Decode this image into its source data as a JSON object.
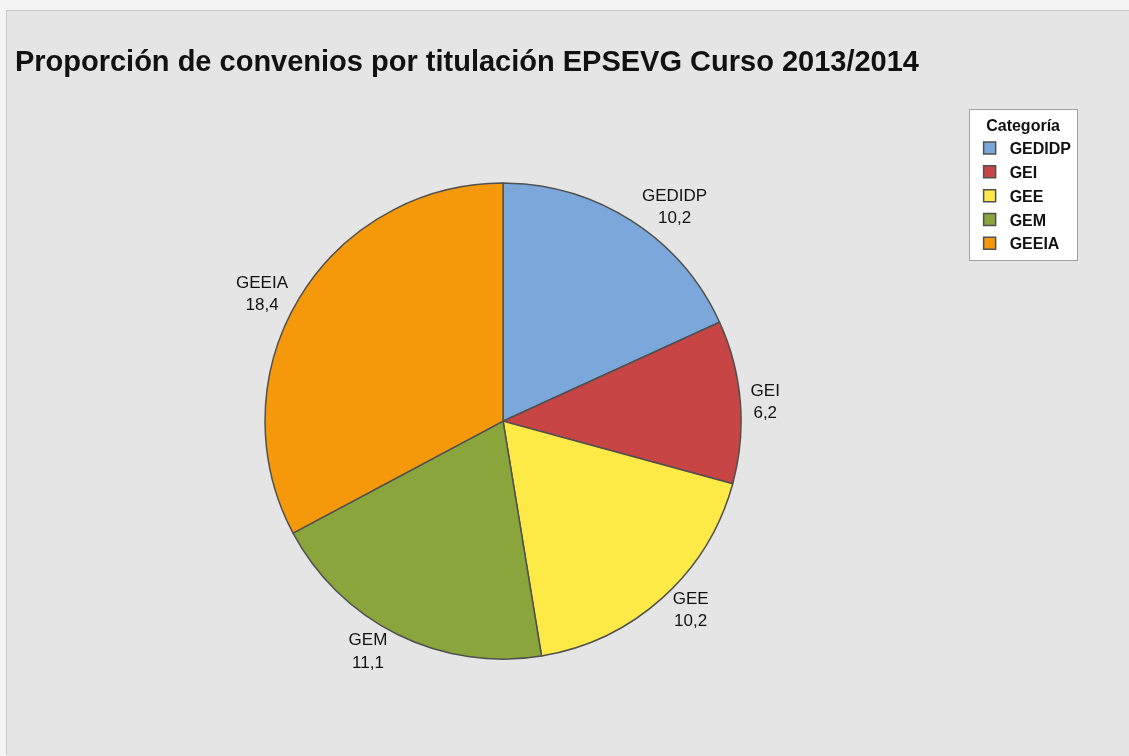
{
  "chart_data": {
    "type": "pie",
    "title": "Proporción de convenios por titulación EPSEVG Curso 2013/2014",
    "legend_title": "Categoría",
    "categories": [
      "GEDIDP",
      "GEI",
      "GEE",
      "GEM",
      "GEEIA"
    ],
    "values": [
      10.2,
      6.2,
      10.2,
      11.1,
      18.4
    ],
    "value_labels": [
      "10,2",
      "6,2",
      "10,2",
      "11,1",
      "18,4"
    ],
    "colors": [
      "#7ba7da",
      "#c84545",
      "#feea47",
      "#8aa53b",
      "#f5990a"
    ],
    "legend": "top right"
  }
}
